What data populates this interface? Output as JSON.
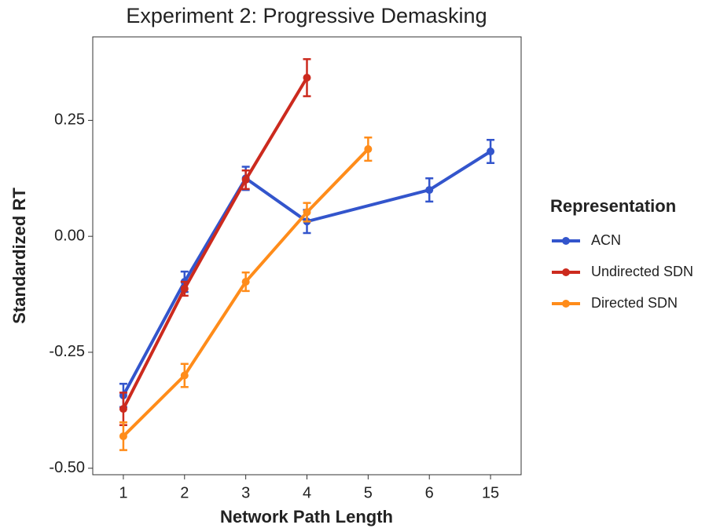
{
  "chart_data": {
    "type": "line",
    "title": "Experiment 2: Progressive Demasking",
    "x_label": "Network Path Length",
    "y_label": "Standardized RT",
    "legend_title": "Representation",
    "legend_position": "right",
    "categories": [
      "1",
      "2",
      "3",
      "4",
      "5",
      "6",
      "15"
    ],
    "ylim": [
      -0.514,
      0.43
    ],
    "yticks": [
      {
        "value": -0.5,
        "label": "-0.50"
      },
      {
        "value": -0.25,
        "label": "-0.25"
      },
      {
        "value": 0,
        "label": "0.00"
      },
      {
        "value": 0.25,
        "label": "0.25"
      }
    ],
    "grid": false,
    "series": [
      {
        "name": "ACN",
        "color": "#3355cc",
        "x": [
          "1",
          "2",
          "3",
          "4",
          "6",
          "15"
        ],
        "values": [
          -0.343,
          -0.098,
          0.125,
          0.032,
          0.1,
          0.183
        ],
        "errors": [
          0.025,
          0.022,
          0.025,
          0.025,
          0.025,
          0.025
        ]
      },
      {
        "name": "Undirected SDN",
        "color": "#cc2a1e",
        "x": [
          "1",
          "2",
          "3",
          "4"
        ],
        "values": [
          -0.372,
          -0.113,
          0.122,
          0.342
        ],
        "errors": [
          0.035,
          0.015,
          0.02,
          0.04
        ]
      },
      {
        "name": "Directed SDN",
        "color": "#ff8c1a",
        "x": [
          "1",
          "2",
          "3",
          "4",
          "5"
        ],
        "values": [
          -0.431,
          -0.3,
          -0.098,
          0.052,
          0.188
        ],
        "errors": [
          0.03,
          0.025,
          0.02,
          0.02,
          0.025
        ]
      }
    ]
  }
}
